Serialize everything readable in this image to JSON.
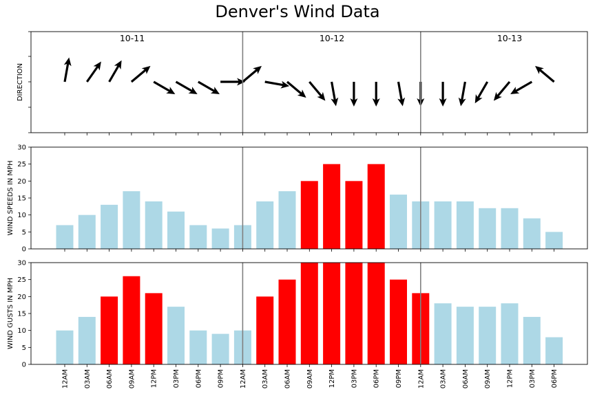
{
  "title": "Denver's Wind Data",
  "chart_data": {
    "type": "bar",
    "title": "Denver's Wind Data",
    "categories": [
      "12AM",
      "03AM",
      "06AM",
      "09AM",
      "12PM",
      "03PM",
      "06PM",
      "09PM",
      "12AM",
      "03AM",
      "06AM",
      "09AM",
      "12PM",
      "03PM",
      "06PM",
      "09PM",
      "12AM",
      "03AM",
      "06AM",
      "09AM",
      "12PM",
      "03PM",
      "06PM"
    ],
    "day_labels": [
      "10-11",
      "10-12",
      "10-13"
    ],
    "day_divider_indices": [
      8,
      16
    ],
    "high_wind_color": "#ff0000",
    "normal_color": "#add8e6",
    "divider_color": "#808080",
    "panels": [
      {
        "name": "direction",
        "ylabel": "DIRECTION",
        "type": "quiver",
        "direction_angles_deg": [
          80,
          55,
          60,
          40,
          -30,
          -30,
          -30,
          0,
          40,
          -10,
          -40,
          -50,
          -80,
          -90,
          -90,
          -80,
          -90,
          -90,
          -100,
          -120,
          -130,
          -150,
          140
        ]
      },
      {
        "name": "wind_speeds",
        "ylabel": "WIND SPEEDS IN MPH",
        "type": "bar",
        "ylim": [
          0,
          30
        ],
        "yticks": [
          0,
          5,
          10,
          15,
          20,
          25,
          30
        ],
        "values": [
          7,
          10,
          13,
          17,
          14,
          11,
          7,
          6,
          7,
          14,
          17,
          20,
          25,
          20,
          25,
          16,
          14,
          14,
          14,
          12,
          12,
          9,
          5
        ],
        "threshold": 20
      },
      {
        "name": "wind_gusts",
        "ylabel": "WIND GUSTS IN MPH",
        "type": "bar",
        "ylim": [
          0,
          30
        ],
        "yticks": [
          0,
          5,
          10,
          15,
          20,
          25,
          30
        ],
        "values": [
          10,
          14,
          20,
          26,
          21,
          17,
          10,
          9,
          10,
          20,
          25,
          30,
          30,
          30,
          30,
          25,
          21,
          18,
          17,
          17,
          18,
          14,
          8
        ],
        "threshold": 20
      }
    ]
  }
}
